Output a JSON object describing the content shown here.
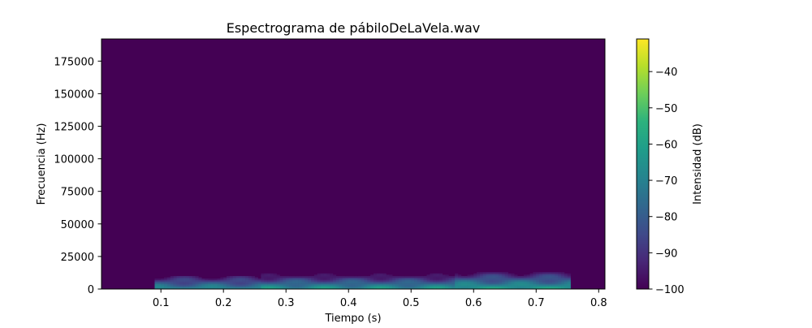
{
  "chart_data": {
    "type": "heatmap",
    "title": "Espectrograma de pábiloDeLaVela.wav",
    "xlabel": "Tiempo (s)",
    "ylabel": "Frecuencia (Hz)",
    "xlim": [
      0.005,
      0.81
    ],
    "ylim": [
      0,
      192000
    ],
    "x_ticks": [
      0.1,
      0.2,
      0.3,
      0.4,
      0.5,
      0.6,
      0.7,
      0.8
    ],
    "x_tick_labels": [
      "0.1",
      "0.2",
      "0.3",
      "0.4",
      "0.5",
      "0.6",
      "0.7",
      "0.8"
    ],
    "y_ticks": [
      0,
      25000,
      50000,
      75000,
      100000,
      125000,
      150000,
      175000
    ],
    "y_tick_labels": [
      "0",
      "25000",
      "50000",
      "75000",
      "100000",
      "125000",
      "150000",
      "175000"
    ],
    "colorbar": {
      "label": "Intensidad (dB)",
      "colormap": "viridis",
      "range": [
        -100,
        -31
      ],
      "ticks": [
        -40,
        -50,
        -60,
        -70,
        -80,
        -90,
        -100
      ],
      "tick_labels": [
        "−40",
        "−50",
        "−60",
        "−70",
        "−80",
        "−90",
        "−100"
      ]
    },
    "background_db": -100,
    "energy_regions": [
      {
        "t_start": 0.09,
        "t_end": 0.26,
        "f_max": 13000,
        "peak_db": -62
      },
      {
        "t_start": 0.26,
        "t_end": 0.57,
        "f_max": 12000,
        "peak_db": -58
      },
      {
        "t_start": 0.57,
        "t_end": 0.755,
        "f_max": 14000,
        "peak_db": -55
      }
    ],
    "grid": false
  }
}
